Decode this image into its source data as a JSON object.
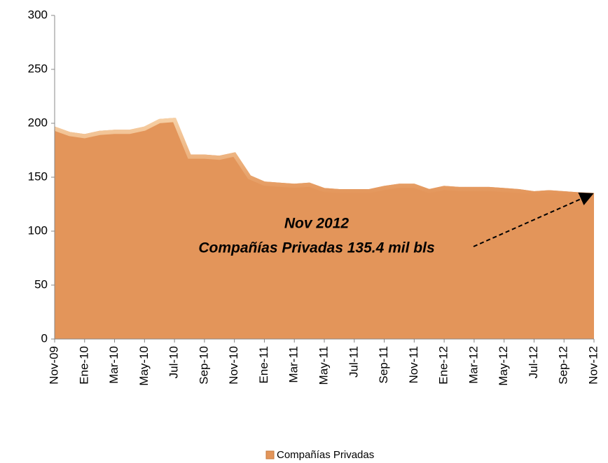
{
  "chart_data": {
    "type": "area",
    "categories": [
      "Nov-09",
      null,
      "Ene-10",
      null,
      "Mar-10",
      null,
      "May-10",
      null,
      "Jul-10",
      null,
      "Sep-10",
      null,
      "Nov-10",
      null,
      "Ene-11",
      null,
      "Mar-11",
      null,
      "May-11",
      null,
      "Jul-11",
      null,
      "Sep-11",
      null,
      "Nov-11",
      null,
      "Ene-12",
      null,
      "Mar-12",
      null,
      "May-12",
      null,
      "Jul-12",
      null,
      "Sep-12",
      null,
      "Nov-12"
    ],
    "series": [
      {
        "name": "Compañías Privadas",
        "color": "#e3955a",
        "values": [
          197,
          192,
          190,
          193,
          194,
          194,
          197,
          204,
          205,
          171,
          171,
          170,
          173,
          152,
          146,
          145,
          144,
          145,
          140,
          139,
          139,
          139,
          142,
          144,
          144,
          139,
          142,
          141,
          141,
          141,
          140,
          139,
          137,
          138,
          137,
          136,
          135.4
        ]
      }
    ],
    "ylim": [
      0,
      300
    ],
    "yticks": [
      0,
      50,
      100,
      150,
      200,
      250,
      300
    ],
    "annotation": [
      "Nov 2012",
      "Compañías Privadas 135.4 mil bls"
    ],
    "legend": "bottom"
  }
}
